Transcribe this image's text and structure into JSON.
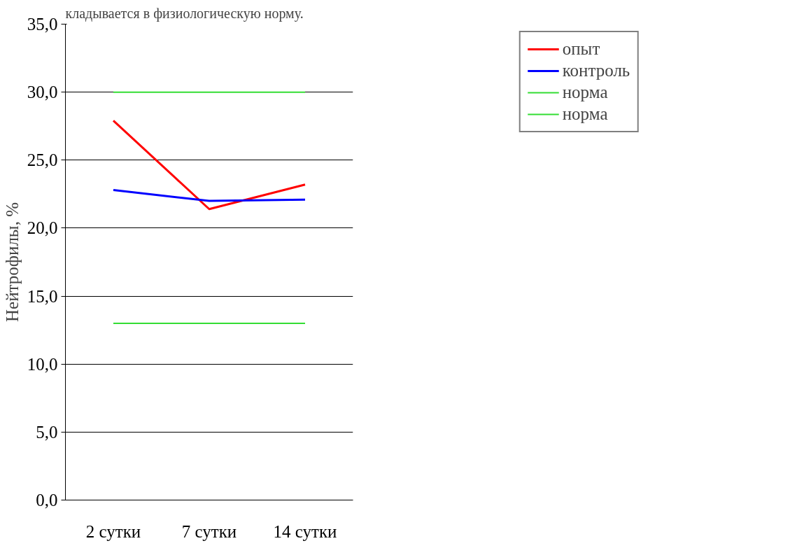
{
  "chart_data": {
    "type": "line",
    "ylabel": "Нейтрофилы, %",
    "categories": [
      "2 сутки",
      "7 сутки",
      "14 сутки"
    ],
    "series": [
      {
        "name": "опыт",
        "color": "#ff0000",
        "values": [
          27.9,
          21.4,
          23.2
        ]
      },
      {
        "name": "контроль",
        "color": "#0000ff",
        "values": [
          22.8,
          22.0,
          22.1
        ]
      },
      {
        "name": "норма",
        "color": "#33dd33",
        "values": [
          30.0,
          30.0,
          30.0
        ]
      },
      {
        "name": "норма",
        "color": "#33dd33",
        "values": [
          13.0,
          13.0,
          13.0
        ]
      }
    ],
    "ylim": [
      0,
      35
    ],
    "yticks": [
      {
        "value": 0,
        "label": "0,0"
      },
      {
        "value": 5,
        "label": "5,0"
      },
      {
        "value": 10,
        "label": "10,0"
      },
      {
        "value": 15,
        "label": "15,0"
      },
      {
        "value": 20,
        "label": "20,0"
      },
      {
        "value": 25,
        "label": "25,0"
      },
      {
        "value": 30,
        "label": "30,0"
      },
      {
        "value": 35,
        "label": "35,0"
      }
    ],
    "grid": "y",
    "legend": "top right",
    "annotations": [
      "кладывается в физиологическую норму."
    ]
  }
}
